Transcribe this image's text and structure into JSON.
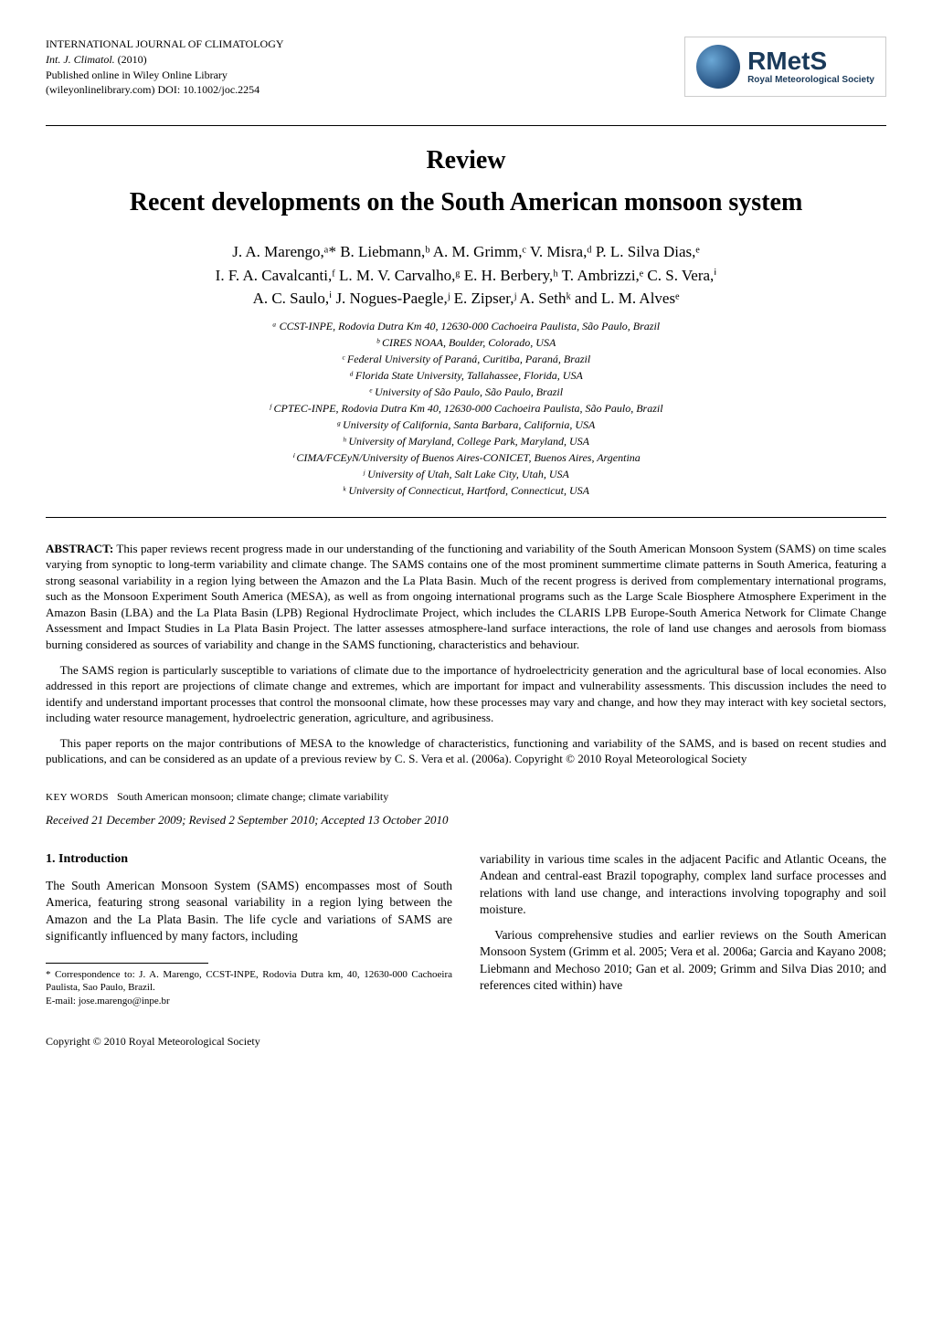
{
  "header": {
    "journal_title": "INTERNATIONAL JOURNAL OF CLIMATOLOGY",
    "journal_abbrev": "Int. J. Climatol.",
    "year": "(2010)",
    "online_info": "Published online in Wiley Online Library",
    "doi_info": "(wileyonlinelibrary.com) DOI: 10.1002/joc.2254",
    "logo": {
      "name": "RMetS",
      "subtitle": "Royal Meteorological Society"
    }
  },
  "review_label": "Review",
  "title": "Recent developments on the South American monsoon system",
  "authors_line1": "J. A. Marengo,ᵃ* B. Liebmann,ᵇ A. M. Grimm,ᶜ V. Misra,ᵈ P. L. Silva Dias,ᵉ",
  "authors_line2": "I. F. A. Cavalcanti,ᶠ L. M. V. Carvalho,ᵍ E. H. Berbery,ʰ T. Ambrizzi,ᵉ C. S. Vera,ⁱ",
  "authors_line3": "A. C. Saulo,ⁱ J. Nogues-Paegle,ʲ E. Zipser,ʲ A. Sethᵏ and L. M. Alvesᵉ",
  "affiliations": {
    "a": "ᵃ CCST-INPE, Rodovia Dutra Km 40, 12630-000 Cachoeira Paulista, São Paulo, Brazil",
    "b": "ᵇ CIRES NOAA, Boulder, Colorado, USA",
    "c": "ᶜ Federal University of Paraná, Curitiba, Paraná, Brazil",
    "d": "ᵈ Florida State University, Tallahassee, Florida, USA",
    "e": "ᵉ University of São Paulo, São Paulo, Brazil",
    "f": "ᶠ CPTEC-INPE, Rodovia Dutra Km 40, 12630-000 Cachoeira Paulista, São Paulo, Brazil",
    "g": "ᵍ University of California, Santa Barbara, California, USA",
    "h": "ʰ University of Maryland, College Park, Maryland, USA",
    "i": "ⁱ CIMA/FCEyN/University of Buenos Aires-CONICET, Buenos Aires, Argentina",
    "j": "ʲ University of Utah, Salt Lake City, Utah, USA",
    "k": "ᵏ University of Connecticut, Hartford, Connecticut, USA"
  },
  "abstract": {
    "label": "ABSTRACT:",
    "p1": " This paper reviews recent progress made in our understanding of the functioning and variability of the South American Monsoon System (SAMS) on time scales varying from synoptic to long-term variability and climate change. The SAMS contains one of the most prominent summertime climate patterns in South America, featuring a strong seasonal variability in a region lying between the Amazon and the La Plata Basin. Much of the recent progress is derived from complementary international programs, such as the Monsoon Experiment South America (MESA), as well as from ongoing international programs such as the Large Scale Biosphere Atmosphere Experiment in the Amazon Basin (LBA) and the La Plata Basin (LPB) Regional Hydroclimate Project, which includes the CLARIS LPB Europe-South America Network for Climate Change Assessment and Impact Studies in La Plata Basin Project. The latter assesses atmosphere-land surface interactions, the role of land use changes and aerosols from biomass burning considered as sources of variability and change in the SAMS functioning, characteristics and behaviour.",
    "p2": "The SAMS region is particularly susceptible to variations of climate due to the importance of hydroelectricity generation and the agricultural base of local economies. Also addressed in this report are projections of climate change and extremes, which are important for impact and vulnerability assessments. This discussion includes the need to identify and understand important processes that control the monsoonal climate, how these processes may vary and change, and how they may interact with key societal sectors, including water resource management, hydroelectric generation, agriculture, and agribusiness.",
    "p3": "This paper reports on the major contributions of MESA to the knowledge of characteristics, functioning and variability of the SAMS, and is based on recent studies and publications, and can be considered as an update of a previous review by C. S. Vera et al. (2006a). Copyright © 2010 Royal Meteorological Society"
  },
  "keywords_label": "KEY WORDS",
  "keywords": "South American monsoon; climate change; climate variability",
  "received": "Received 21 December 2009; Revised 2 September 2010; Accepted 13 October 2010",
  "intro_heading": "1.  Introduction",
  "intro_p1": "The South American Monsoon System (SAMS) encompasses most of South America, featuring strong seasonal variability in a region lying between the Amazon and the La Plata Basin. The life cycle and variations of SAMS are significantly influenced by many factors, including",
  "col2_p1": "variability in various time scales in the adjacent Pacific and Atlantic Oceans, the Andean and central-east Brazil topography, complex land surface processes and relations with land use change, and interactions involving topography and soil moisture.",
  "col2_p2": "Various comprehensive studies and earlier reviews on the South American Monsoon System (Grimm et al. 2005; Vera et al. 2006a; Garcia and Kayano 2008; Liebmann and Mechoso 2010; Gan et al. 2009; Grimm and Silva Dias 2010; and references cited within) have",
  "footnote": {
    "corr": "* Correspondence to: J. A. Marengo, CCST-INPE, Rodovia Dutra km, 40, 12630-000 Cachoeira Paulista, Sao Paulo, Brazil.",
    "email": "E-mail: jose.marengo@inpe.br"
  },
  "copyright": "Copyright © 2010 Royal Meteorological Society",
  "colors": {
    "text": "#000000",
    "background": "#ffffff",
    "logo_blue": "#1a3a5a"
  }
}
